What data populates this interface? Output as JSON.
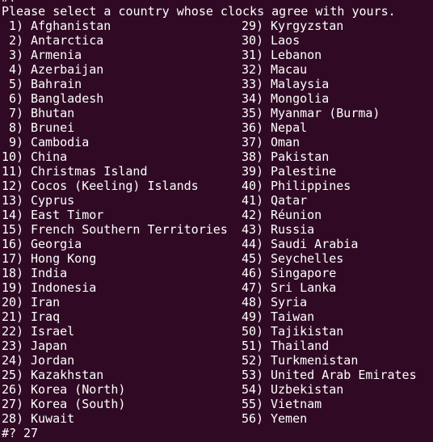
{
  "terminal": {
    "previous_prompt": "#?",
    "message": "Please select a country whose clocks agree with yours.",
    "items": [
      {
        "number": "1)",
        "name": "Afghanistan"
      },
      {
        "number": "2)",
        "name": "Antarctica"
      },
      {
        "number": "3)",
        "name": "Armenia"
      },
      {
        "number": "4)",
        "name": "Azerbaijan"
      },
      {
        "number": "5)",
        "name": "Bahrain"
      },
      {
        "number": "6)",
        "name": "Bangladesh"
      },
      {
        "number": "7)",
        "name": "Bhutan"
      },
      {
        "number": "8)",
        "name": "Brunei"
      },
      {
        "number": "9)",
        "name": "Cambodia"
      },
      {
        "number": "10)",
        "name": "China"
      },
      {
        "number": "11)",
        "name": "Christmas Island"
      },
      {
        "number": "12)",
        "name": "Cocos (Keeling) Islands"
      },
      {
        "number": "13)",
        "name": "Cyprus"
      },
      {
        "number": "14)",
        "name": "East Timor"
      },
      {
        "number": "15)",
        "name": "French Southern Territories"
      },
      {
        "number": "16)",
        "name": "Georgia"
      },
      {
        "number": "17)",
        "name": "Hong Kong"
      },
      {
        "number": "18)",
        "name": "India"
      },
      {
        "number": "19)",
        "name": "Indonesia"
      },
      {
        "number": "20)",
        "name": "Iran"
      },
      {
        "number": "21)",
        "name": "Iraq"
      },
      {
        "number": "22)",
        "name": "Israel"
      },
      {
        "number": "23)",
        "name": "Japan"
      },
      {
        "number": "24)",
        "name": "Jordan"
      },
      {
        "number": "25)",
        "name": "Kazakhstan"
      },
      {
        "number": "26)",
        "name": "Korea (North)"
      },
      {
        "number": "27)",
        "name": "Korea (South)"
      },
      {
        "number": "28)",
        "name": "Kuwait"
      },
      {
        "number": "29)",
        "name": "Kyrgyzstan"
      },
      {
        "number": "30)",
        "name": "Laos"
      },
      {
        "number": "31)",
        "name": "Lebanon"
      },
      {
        "number": "32)",
        "name": "Macau"
      },
      {
        "number": "33)",
        "name": "Malaysia"
      },
      {
        "number": "34)",
        "name": "Mongolia"
      },
      {
        "number": "35)",
        "name": "Myanmar (Burma)"
      },
      {
        "number": "36)",
        "name": "Nepal"
      },
      {
        "number": "37)",
        "name": "Oman"
      },
      {
        "number": "38)",
        "name": "Pakistan"
      },
      {
        "number": "39)",
        "name": "Palestine"
      },
      {
        "number": "40)",
        "name": "Philippines"
      },
      {
        "number": "41)",
        "name": "Qatar"
      },
      {
        "number": "42)",
        "name": "Réunion"
      },
      {
        "number": "43)",
        "name": "Russia"
      },
      {
        "number": "44)",
        "name": "Saudi Arabia"
      },
      {
        "number": "45)",
        "name": "Seychelles"
      },
      {
        "number": "46)",
        "name": "Singapore"
      },
      {
        "number": "47)",
        "name": "Sri Lanka"
      },
      {
        "number": "48)",
        "name": "Syria"
      },
      {
        "number": "49)",
        "name": "Taiwan"
      },
      {
        "number": "50)",
        "name": "Tajikistan"
      },
      {
        "number": "51)",
        "name": "Thailand"
      },
      {
        "number": "52)",
        "name": "Turkmenistan"
      },
      {
        "number": "53)",
        "name": "United Arab Emirates"
      },
      {
        "number": "54)",
        "name": "Uzbekistan"
      },
      {
        "number": "55)",
        "name": "Vietnam"
      },
      {
        "number": "56)",
        "name": "Yemen"
      }
    ],
    "prompt": "#?",
    "input": "27"
  }
}
